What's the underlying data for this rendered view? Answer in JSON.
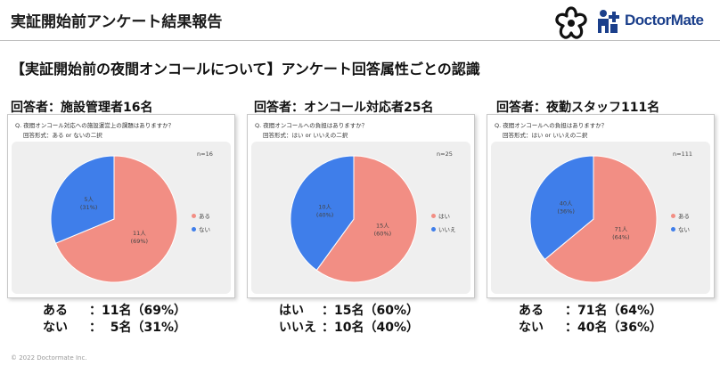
{
  "header": {
    "title": "実証開始前アンケート結果報告",
    "logo_text": "DoctorMate"
  },
  "section_title": "【実証開始前の夜間オンコールについて】アンケート回答属性ごとの認識",
  "colors": {
    "red": "#F28E84",
    "blue": "#3F7EEA",
    "logo_blue": "#1B3F8B"
  },
  "chart_data": [
    {
      "type": "pie",
      "respondent_label": "回答者：施設管理者16名",
      "question": "Q. 夜間オンコール対応への施設運営上の課題はありますか？",
      "answer_format": "回答形式：ある or ないの二択",
      "n_label": "n=16",
      "slices": [
        {
          "label": "ある",
          "count": 11,
          "percent": 69,
          "slice_label": "11人",
          "slice_pct": "(69%)"
        },
        {
          "label": "ない",
          "count": 5,
          "percent": 31,
          "slice_label": "5人",
          "slice_pct": "(31%)"
        }
      ],
      "summary": [
        {
          "label": "ある",
          "value": "：11名（69%）"
        },
        {
          "label": "ない",
          "value": "：  5名（31%）"
        }
      ]
    },
    {
      "type": "pie",
      "respondent_label": "回答者：オンコール対応者25名",
      "question": "Q. 夜間オンコールへの負担はありますか？",
      "answer_format": "回答形式：はい or いいえの二択",
      "n_label": "n=25",
      "slices": [
        {
          "label": "はい",
          "count": 15,
          "percent": 60,
          "slice_label": "15人",
          "slice_pct": "(60%)"
        },
        {
          "label": "いいえ",
          "count": 10,
          "percent": 40,
          "slice_label": "10人",
          "slice_pct": "(40%)"
        }
      ],
      "summary": [
        {
          "label": "はい",
          "value": "：15名（60%）"
        },
        {
          "label": "いいえ",
          "value": "：10名（40%）"
        }
      ]
    },
    {
      "type": "pie",
      "respondent_label": "回答者：夜勤スタッフ111名",
      "question": "Q. 夜間オンコールへの負担はありますか？",
      "answer_format": "回答形式：はい or いいえの二択",
      "n_label": "n=111",
      "slices": [
        {
          "label": "ある",
          "count": 71,
          "percent": 64,
          "slice_label": "71人",
          "slice_pct": "(64%)"
        },
        {
          "label": "ない",
          "count": 40,
          "percent": 36,
          "slice_label": "40人",
          "slice_pct": "(36%)"
        }
      ],
      "summary": [
        {
          "label": "ある",
          "value": "：71名（64%）"
        },
        {
          "label": "ない",
          "value": "：40名（36%）"
        }
      ]
    }
  ],
  "footer": "© 2022 Doctormate Inc."
}
